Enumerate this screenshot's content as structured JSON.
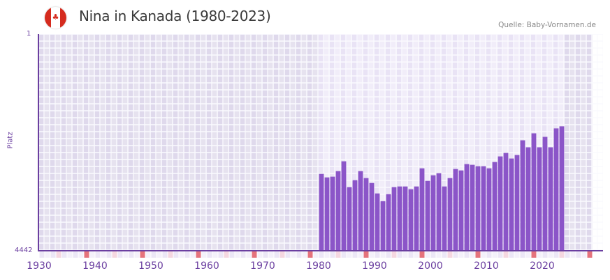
{
  "header": {
    "title": "Nina in Kanada (1980-2023)",
    "flag_icon": "canada-flag-icon",
    "source": "Quelle: Baby-Vornamen.de"
  },
  "colors": {
    "bar": "#8b55c8",
    "axis": "#6b3fa0",
    "bg_active": "#ede8f7",
    "bg_inactive": "#e2ddee",
    "tick_decade": "#e5737c",
    "tick_mid": "#f5d7e0",
    "tick_other": "#efeaf8"
  },
  "chart_data": {
    "type": "bar",
    "title": "Nina in Kanada (1980-2023)",
    "xlabel": "",
    "ylabel": "Platz",
    "ylim": [
      4442,
      1
    ],
    "y_ticks": [
      "1",
      "4442"
    ],
    "x_range": [
      1928,
      2028
    ],
    "x_ticks": [
      1930,
      1940,
      1950,
      1960,
      1970,
      1980,
      1990,
      2000,
      2010,
      2020
    ],
    "grid": true,
    "legend": null,
    "categories": [
      1980,
      1981,
      1982,
      1983,
      1984,
      1985,
      1986,
      1987,
      1988,
      1989,
      1990,
      1991,
      1992,
      1993,
      1994,
      1995,
      1996,
      1997,
      1998,
      1999,
      2000,
      2001,
      2002,
      2003,
      2004,
      2005,
      2006,
      2007,
      2008,
      2009,
      2010,
      2011,
      2012,
      2013,
      2014,
      2015,
      2016,
      2017,
      2018,
      2019,
      2020,
      2021,
      2022,
      2023
    ],
    "values": [
      2866,
      2938,
      2923,
      2809,
      2608,
      3138,
      2995,
      2809,
      2952,
      3052,
      3267,
      3425,
      3282,
      3138,
      3124,
      3124,
      3181,
      3124,
      2752,
      3009,
      2895,
      2852,
      3124,
      2952,
      2766,
      2795,
      2665,
      2680,
      2709,
      2709,
      2752,
      2622,
      2508,
      2436,
      2551,
      2479,
      2178,
      2321,
      2035,
      2321,
      2107,
      2321,
      1934,
      1891
    ],
    "series": [
      {
        "name": "Platz",
        "values": [
          2866,
          2938,
          2923,
          2809,
          2608,
          3138,
          2995,
          2809,
          2952,
          3052,
          3267,
          3425,
          3282,
          3138,
          3124,
          3124,
          3181,
          3124,
          2752,
          3009,
          2895,
          2852,
          3124,
          2952,
          2766,
          2795,
          2665,
          2680,
          2709,
          2709,
          2752,
          2622,
          2508,
          2436,
          2551,
          2479,
          2178,
          2321,
          2035,
          2321,
          2107,
          2321,
          1934,
          1891
        ]
      }
    ]
  }
}
